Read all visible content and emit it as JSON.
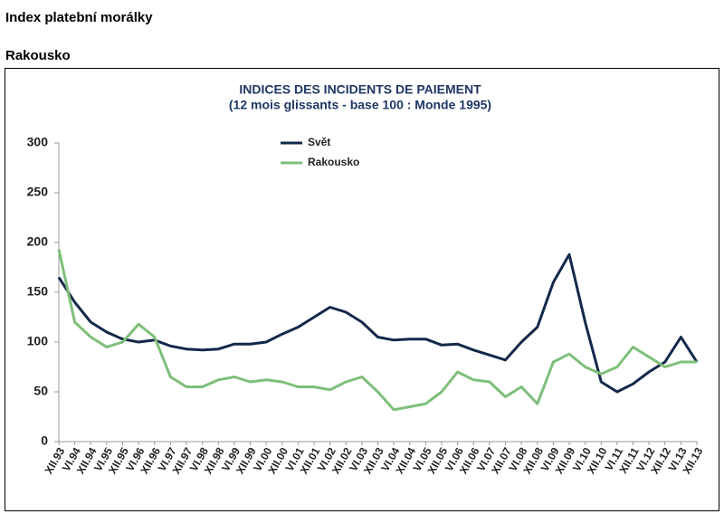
{
  "header": {
    "title": "Index platební morálky",
    "subtitle": "Rakousko"
  },
  "chart_data": {
    "type": "line",
    "title": "INDICES DES INCIDENTS DE PAIEMENT",
    "subtitle": "(12 mois glissants - base 100 : Monde 1995)",
    "categories": [
      "XII.93",
      "VI.94",
      "XII.94",
      "VI.95",
      "XII.95",
      "VI.96",
      "XII.96",
      "VI.97",
      "XII.97",
      "VI.98",
      "XII.98",
      "VI.99",
      "XII.99",
      "VI.00",
      "XII.00",
      "VI.01",
      "XII.01",
      "VI.02",
      "XII.02",
      "VI.03",
      "XII.03",
      "VI.04",
      "XII.04",
      "VI.05",
      "XII.05",
      "VI.06",
      "XII.06",
      "VI.07",
      "XII.07",
      "VI.08",
      "XII.08",
      "VI.09",
      "XII.09",
      "VI.10",
      "XII.10",
      "VI.11",
      "XII.11",
      "VI.12",
      "XII.12",
      "VI.13",
      "XII.13"
    ],
    "series": [
      {
        "name": "Svět",
        "color": "#13294b",
        "values": [
          165,
          140,
          120,
          110,
          103,
          100,
          102,
          96,
          93,
          92,
          93,
          98,
          98,
          100,
          108,
          115,
          125,
          135,
          130,
          120,
          105,
          102,
          103,
          103,
          97,
          98,
          92,
          87,
          82,
          100,
          115,
          160,
          188,
          120,
          60,
          50,
          58,
          70,
          80,
          105,
          80
        ]
      },
      {
        "name": "Rakousko",
        "color": "#7dbf7a",
        "values": [
          193,
          120,
          105,
          95,
          100,
          118,
          105,
          65,
          55,
          55,
          62,
          65,
          60,
          62,
          60,
          55,
          55,
          52,
          60,
          65,
          50,
          32,
          35,
          38,
          50,
          70,
          62,
          60,
          45,
          55,
          38,
          80,
          88,
          75,
          68,
          75,
          95,
          85,
          75,
          80,
          80
        ]
      }
    ],
    "ylim": [
      0,
      300
    ],
    "yticks": [
      0,
      50,
      100,
      150,
      200,
      250,
      300
    ],
    "grid": false,
    "legend": "top"
  }
}
